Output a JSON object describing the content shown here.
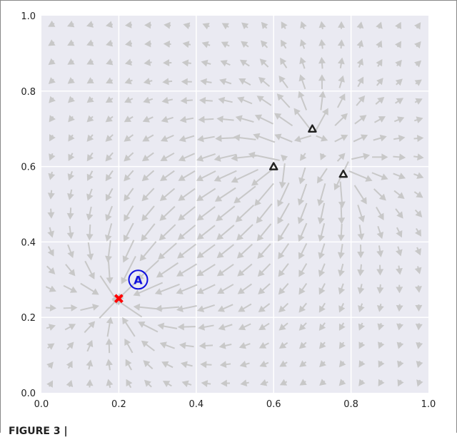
{
  "chart_data": {
    "type": "quiver",
    "title": "",
    "xlabel": "",
    "ylabel": "",
    "xlim": [
      0.0,
      1.0
    ],
    "ylim": [
      0.0,
      1.0
    ],
    "xticks": [
      "0.0",
      "0.2",
      "0.4",
      "0.6",
      "0.8",
      "1.0"
    ],
    "yticks": [
      "0.0",
      "0.2",
      "0.4",
      "0.6",
      "0.8",
      "1.0"
    ],
    "grid": true,
    "background": "#eaeaf2",
    "arrow_color": "#c8c8c8",
    "sink": {
      "x": 0.2,
      "y": 0.25,
      "marker": "x",
      "color": "#ff0000"
    },
    "sources": [
      {
        "x": 0.6,
        "y": 0.6,
        "marker": "triangle"
      },
      {
        "x": 0.7,
        "y": 0.7,
        "marker": "triangle"
      },
      {
        "x": 0.78,
        "y": 0.58,
        "marker": "triangle"
      }
    ],
    "annotation": {
      "x": 0.25,
      "y": 0.3,
      "label": "A",
      "color": "#1010dd"
    }
  },
  "caption": "FIGURE 3 |"
}
